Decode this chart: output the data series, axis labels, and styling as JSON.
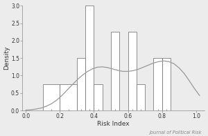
{
  "title": "",
  "xlabel": "Risk Index",
  "ylabel": "Density",
  "journal_label": "Journal of Political Risk",
  "xlim": [
    -0.02,
    1.05
  ],
  "ylim": [
    0.0,
    3.0
  ],
  "xticks": [
    0.0,
    0.2,
    0.4,
    0.6,
    0.8,
    1.0
  ],
  "yticks": [
    0.0,
    0.5,
    1.0,
    1.5,
    2.0,
    2.5,
    3.0
  ],
  "bins_left": [
    0.1,
    0.2,
    0.3,
    0.35,
    0.4,
    0.5,
    0.6,
    0.65,
    0.75,
    0.8
  ],
  "bins_right": [
    0.2,
    0.3,
    0.35,
    0.4,
    0.45,
    0.55,
    0.65,
    0.7,
    0.8,
    0.85
  ],
  "heights": [
    0.75,
    0.75,
    1.5,
    3.0,
    0.75,
    2.25,
    2.25,
    0.75,
    1.5,
    1.5
  ],
  "kde_x": [
    0.0,
    0.03,
    0.06,
    0.09,
    0.12,
    0.15,
    0.18,
    0.21,
    0.24,
    0.27,
    0.3,
    0.33,
    0.36,
    0.39,
    0.42,
    0.45,
    0.48,
    0.51,
    0.54,
    0.57,
    0.6,
    0.63,
    0.66,
    0.69,
    0.72,
    0.75,
    0.78,
    0.81,
    0.84,
    0.87,
    0.9,
    0.93,
    0.96,
    0.99,
    1.02
  ],
  "kde_y": [
    0.01,
    0.02,
    0.04,
    0.07,
    0.12,
    0.19,
    0.29,
    0.42,
    0.57,
    0.72,
    0.87,
    1.0,
    1.11,
    1.19,
    1.24,
    1.25,
    1.23,
    1.19,
    1.15,
    1.12,
    1.12,
    1.14,
    1.18,
    1.24,
    1.3,
    1.36,
    1.4,
    1.42,
    1.4,
    1.34,
    1.22,
    1.06,
    0.85,
    0.63,
    0.43
  ],
  "bar_color": "#ffffff",
  "bar_edge_color": "#666666",
  "kde_color": "#999999",
  "bg_color": "#ececec",
  "spine_color": "#888888",
  "tick_color": "#888888",
  "tick_fontsize": 5.5,
  "label_fontsize": 6.5,
  "journal_fontsize": 4.8,
  "linewidth_bar": 0.5,
  "linewidth_kde": 0.9
}
